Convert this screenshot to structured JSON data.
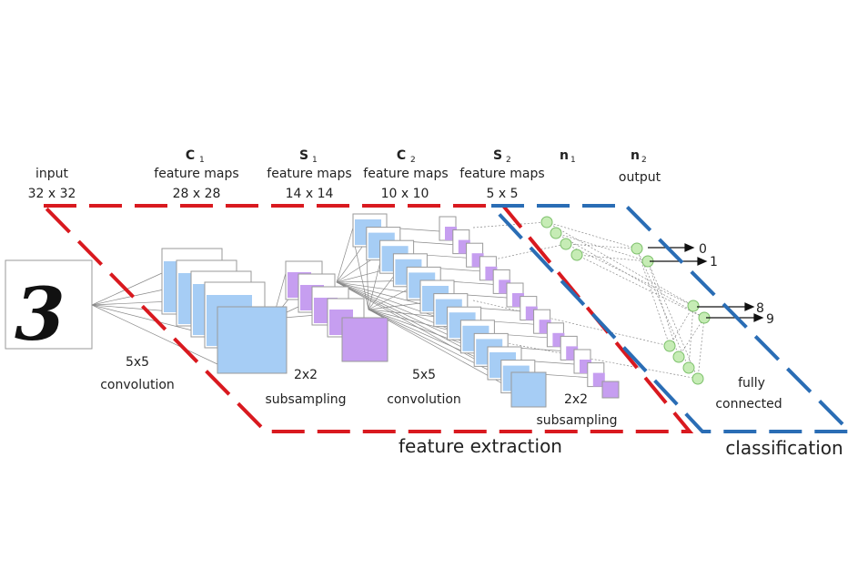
{
  "input": {
    "title": "input",
    "size": "32 x 32",
    "digit": "3"
  },
  "c1": {
    "letter": "C",
    "sub": "1",
    "line2": "feature maps",
    "size": "28 x 28"
  },
  "s1": {
    "letter": "S",
    "sub": "1",
    "line2": "feature maps",
    "size": "14 x 14"
  },
  "c2": {
    "letter": "C",
    "sub": "2",
    "line2": "feature maps",
    "size": "10 x 10"
  },
  "s2": {
    "letter": "S",
    "sub": "2",
    "line2": "feature maps",
    "size": "5 x 5"
  },
  "n1": {
    "letter": "n",
    "sub": "1"
  },
  "n2": {
    "letter": "n",
    "sub": "2",
    "line2": "output"
  },
  "ops": {
    "conv1_a": "5x5",
    "conv1_b": "convolution",
    "sub1_a": "2x2",
    "sub1_b": "subsampling",
    "conv2_a": "5x5",
    "conv2_b": "convolution",
    "sub2_a": "2x2",
    "sub2_b": "subsampling",
    "fc_a": "fully",
    "fc_b": "connected"
  },
  "outputs": [
    "0",
    "1",
    "8",
    "9"
  ],
  "sections": {
    "feature": "feature extraction",
    "classification": "classification"
  },
  "colors": {
    "feature_border": "#d9191f",
    "classification_border": "#2a6db5",
    "conv_map": "#a6cdf5",
    "pool_map": "#c69ef0",
    "neuron": "#c6ecb5",
    "neuron_stroke": "#7cc06a"
  }
}
